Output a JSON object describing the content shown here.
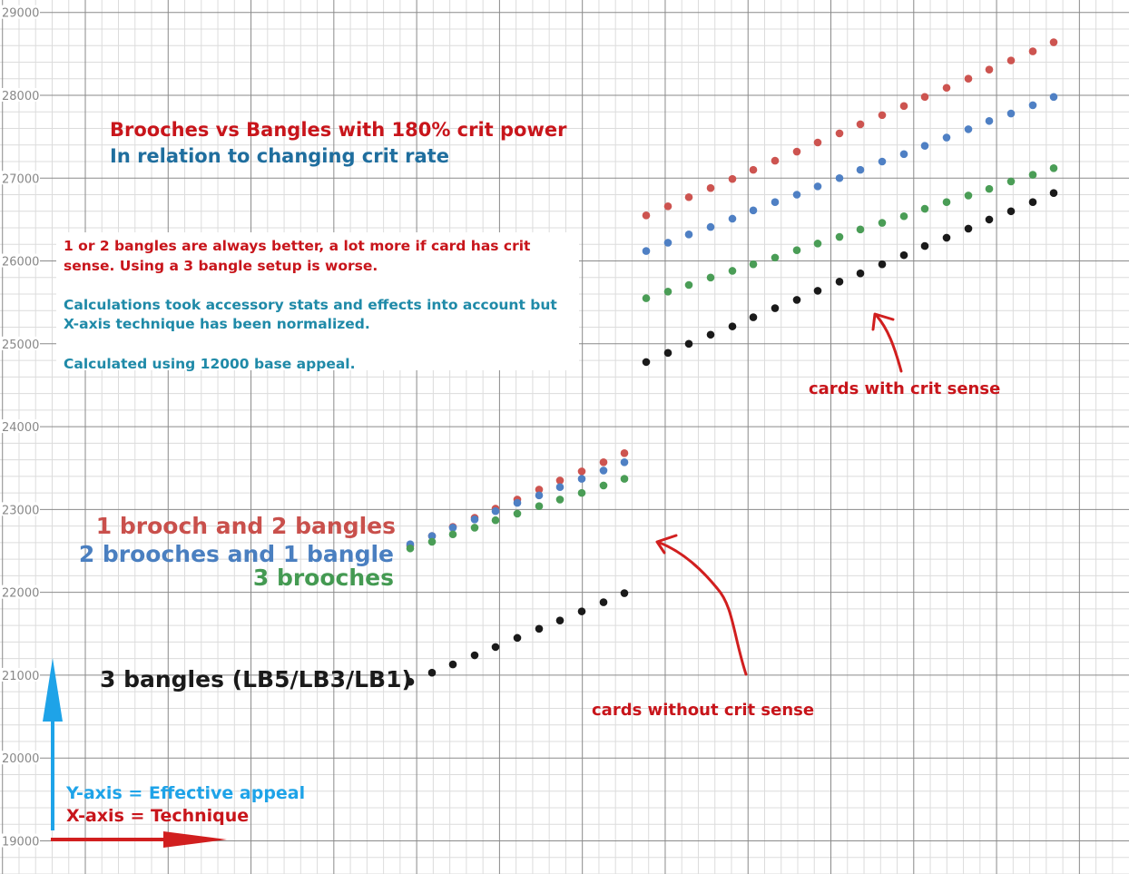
{
  "chart_data": {
    "type": "scatter",
    "y_ticks": [
      "29000",
      "28000",
      "27000",
      "26000",
      "25000",
      "24000",
      "23000",
      "22000",
      "21000",
      "20000",
      "19000"
    ],
    "ylim": [
      18600,
      29150
    ],
    "xlim": [
      0,
      1244
    ],
    "grid": true,
    "series": [
      {
        "name": "1 brooch and 2 bangles",
        "color": "#cd5450",
        "points": [
          [
            452,
            22560
          ],
          [
            476,
            22680
          ],
          [
            499,
            22790
          ],
          [
            523,
            22900
          ],
          [
            546,
            23010
          ],
          [
            570,
            23120
          ],
          [
            594,
            23240
          ],
          [
            617,
            23350
          ],
          [
            641,
            23460
          ],
          [
            665,
            23570
          ],
          [
            688,
            23680
          ],
          [
            712,
            26550
          ],
          [
            736,
            26660
          ],
          [
            759,
            26770
          ],
          [
            783,
            26880
          ],
          [
            807,
            26990
          ],
          [
            830,
            27100
          ],
          [
            854,
            27210
          ],
          [
            878,
            27320
          ],
          [
            901,
            27430
          ],
          [
            925,
            27540
          ],
          [
            948,
            27650
          ],
          [
            972,
            27760
          ],
          [
            996,
            27870
          ],
          [
            1019,
            27980
          ],
          [
            1043,
            28090
          ],
          [
            1067,
            28200
          ],
          [
            1090,
            28310
          ],
          [
            1114,
            28420
          ],
          [
            1138,
            28530
          ],
          [
            1161,
            28640
          ]
        ]
      },
      {
        "name": "2 brooches and 1 bangle",
        "color": "#4f80c4",
        "points": [
          [
            452,
            22580
          ],
          [
            476,
            22680
          ],
          [
            499,
            22780
          ],
          [
            523,
            22880
          ],
          [
            546,
            22980
          ],
          [
            570,
            23080
          ],
          [
            594,
            23170
          ],
          [
            617,
            23270
          ],
          [
            641,
            23370
          ],
          [
            665,
            23470
          ],
          [
            688,
            23570
          ],
          [
            712,
            26120
          ],
          [
            736,
            26220
          ],
          [
            759,
            26320
          ],
          [
            783,
            26410
          ],
          [
            807,
            26510
          ],
          [
            830,
            26610
          ],
          [
            854,
            26710
          ],
          [
            878,
            26800
          ],
          [
            901,
            26900
          ],
          [
            925,
            27000
          ],
          [
            948,
            27100
          ],
          [
            972,
            27200
          ],
          [
            996,
            27290
          ],
          [
            1019,
            27390
          ],
          [
            1043,
            27490
          ],
          [
            1067,
            27590
          ],
          [
            1090,
            27690
          ],
          [
            1114,
            27780
          ],
          [
            1138,
            27880
          ],
          [
            1161,
            27980
          ]
        ]
      },
      {
        "name": "3 brooches",
        "color": "#4a9d56",
        "points": [
          [
            452,
            22530
          ],
          [
            476,
            22610
          ],
          [
            499,
            22700
          ],
          [
            523,
            22780
          ],
          [
            546,
            22870
          ],
          [
            570,
            22950
          ],
          [
            594,
            23040
          ],
          [
            617,
            23120
          ],
          [
            641,
            23200
          ],
          [
            665,
            23290
          ],
          [
            688,
            23370
          ],
          [
            712,
            25550
          ],
          [
            736,
            25630
          ],
          [
            759,
            25710
          ],
          [
            783,
            25800
          ],
          [
            807,
            25880
          ],
          [
            830,
            25960
          ],
          [
            854,
            26040
          ],
          [
            878,
            26130
          ],
          [
            901,
            26210
          ],
          [
            925,
            26290
          ],
          [
            948,
            26380
          ],
          [
            972,
            26460
          ],
          [
            996,
            26540
          ],
          [
            1019,
            26630
          ],
          [
            1043,
            26710
          ],
          [
            1067,
            26790
          ],
          [
            1090,
            26870
          ],
          [
            1114,
            26960
          ],
          [
            1138,
            27040
          ],
          [
            1161,
            27120
          ]
        ]
      },
      {
        "name": "3 bangles (LB5/LB3/LB1)",
        "color": "#1a1a1a",
        "points": [
          [
            452,
            20920
          ],
          [
            476,
            21030
          ],
          [
            499,
            21130
          ],
          [
            523,
            21240
          ],
          [
            546,
            21340
          ],
          [
            570,
            21450
          ],
          [
            594,
            21560
          ],
          [
            617,
            21660
          ],
          [
            641,
            21770
          ],
          [
            665,
            21880
          ],
          [
            688,
            21990
          ],
          [
            712,
            24780
          ],
          [
            736,
            24890
          ],
          [
            759,
            25000
          ],
          [
            783,
            25110
          ],
          [
            807,
            25210
          ],
          [
            830,
            25320
          ],
          [
            854,
            25430
          ],
          [
            878,
            25530
          ],
          [
            901,
            25640
          ],
          [
            925,
            25750
          ],
          [
            948,
            25850
          ],
          [
            972,
            25960
          ],
          [
            996,
            26070
          ],
          [
            1019,
            26180
          ],
          [
            1043,
            26280
          ],
          [
            1067,
            26390
          ],
          [
            1090,
            26500
          ],
          [
            1114,
            26600
          ],
          [
            1138,
            26710
          ],
          [
            1161,
            26820
          ]
        ]
      }
    ]
  },
  "annotations": {
    "title_line1": "Brooches vs Bangles with 180% crit power",
    "title_line2": "In relation to changing crit rate",
    "note1": "1 or 2 bangles are always better, a lot more if card has crit",
    "note2": "sense. Using a 3 bangle setup is worse.",
    "note3": "Calculations took accessory stats and effects into account but",
    "note4": "X-axis technique has been normalized.",
    "note5": "Calculated using 12000 base appeal.",
    "legend1": "1 brooch and 2 bangles",
    "legend2": "2 brooches and 1 bangle",
    "legend3": "3 brooches",
    "legend4": "3 bangles (LB5/LB3/LB1)",
    "crit_label": "cards with crit sense",
    "nocrit_label": "cards without crit sense",
    "yaxis_label": "Y-axis = Effective appeal",
    "xaxis_label": "X-axis = Technique"
  },
  "colors": {
    "title_red": "#c8151b",
    "title_blue": "#1f6e9e",
    "axis_blue_arrow": "#1ea3e8",
    "axis_red_arrow": "#d11f1f"
  }
}
